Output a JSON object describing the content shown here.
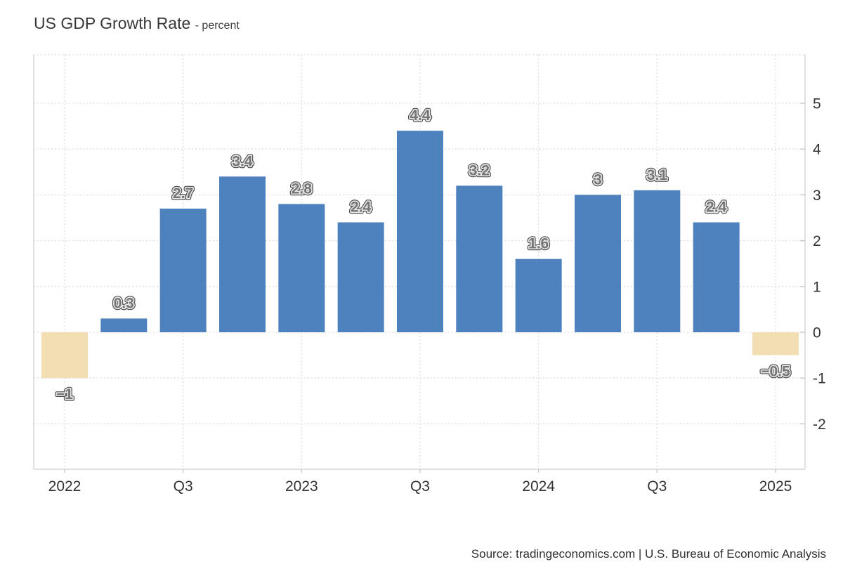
{
  "page": {
    "title_main": "US GDP Growth Rate",
    "title_sub": "- percent",
    "source_text": "Source: tradingeconomics.com | U.S. Bureau of Economic Analysis"
  },
  "chart_data": {
    "type": "bar",
    "title": "US GDP Growth Rate",
    "unit": "percent",
    "values": [
      -1,
      0.3,
      2.7,
      3.4,
      2.8,
      2.4,
      4.4,
      3.2,
      1.6,
      3,
      3.1,
      2.4,
      -0.5
    ],
    "bar_labels": [
      "−1",
      "0.3",
      "2.7",
      "3.4",
      "2.8",
      "2.4",
      "4.4",
      "3.2",
      "1.6",
      "3",
      "3.1",
      "2.4",
      "−0.5"
    ],
    "x_tick_labels": [
      "2022",
      "Q3",
      "2023",
      "Q3",
      "2024",
      "Q3",
      "2025"
    ],
    "x_tick_bar_indexes": [
      0,
      2,
      4,
      6,
      8,
      10,
      12
    ],
    "y_tick_labels": [
      "5",
      "4",
      "3",
      "2",
      "1",
      "0",
      "-1",
      "-2"
    ],
    "y_tick_values": [
      5,
      4,
      3,
      2,
      1,
      0,
      -1,
      -2
    ],
    "ylim": [
      -3,
      6.05
    ],
    "grid": "dotted",
    "legend": "none",
    "y_axis_side": "right",
    "colors": {
      "positive_bar": "#4e82be",
      "negative_bar": "#f3deb3",
      "gridline": "#dedede",
      "axis_line": "#d6d6d6",
      "tick_mark": "#c9c9c9",
      "axis_text": "#333333",
      "bar_label_fill": "#757575",
      "bar_label_inner_stroke": "#e8e8e8",
      "bar_label_outer_stroke": "#2b2b2b",
      "title_color": "#383838"
    }
  }
}
